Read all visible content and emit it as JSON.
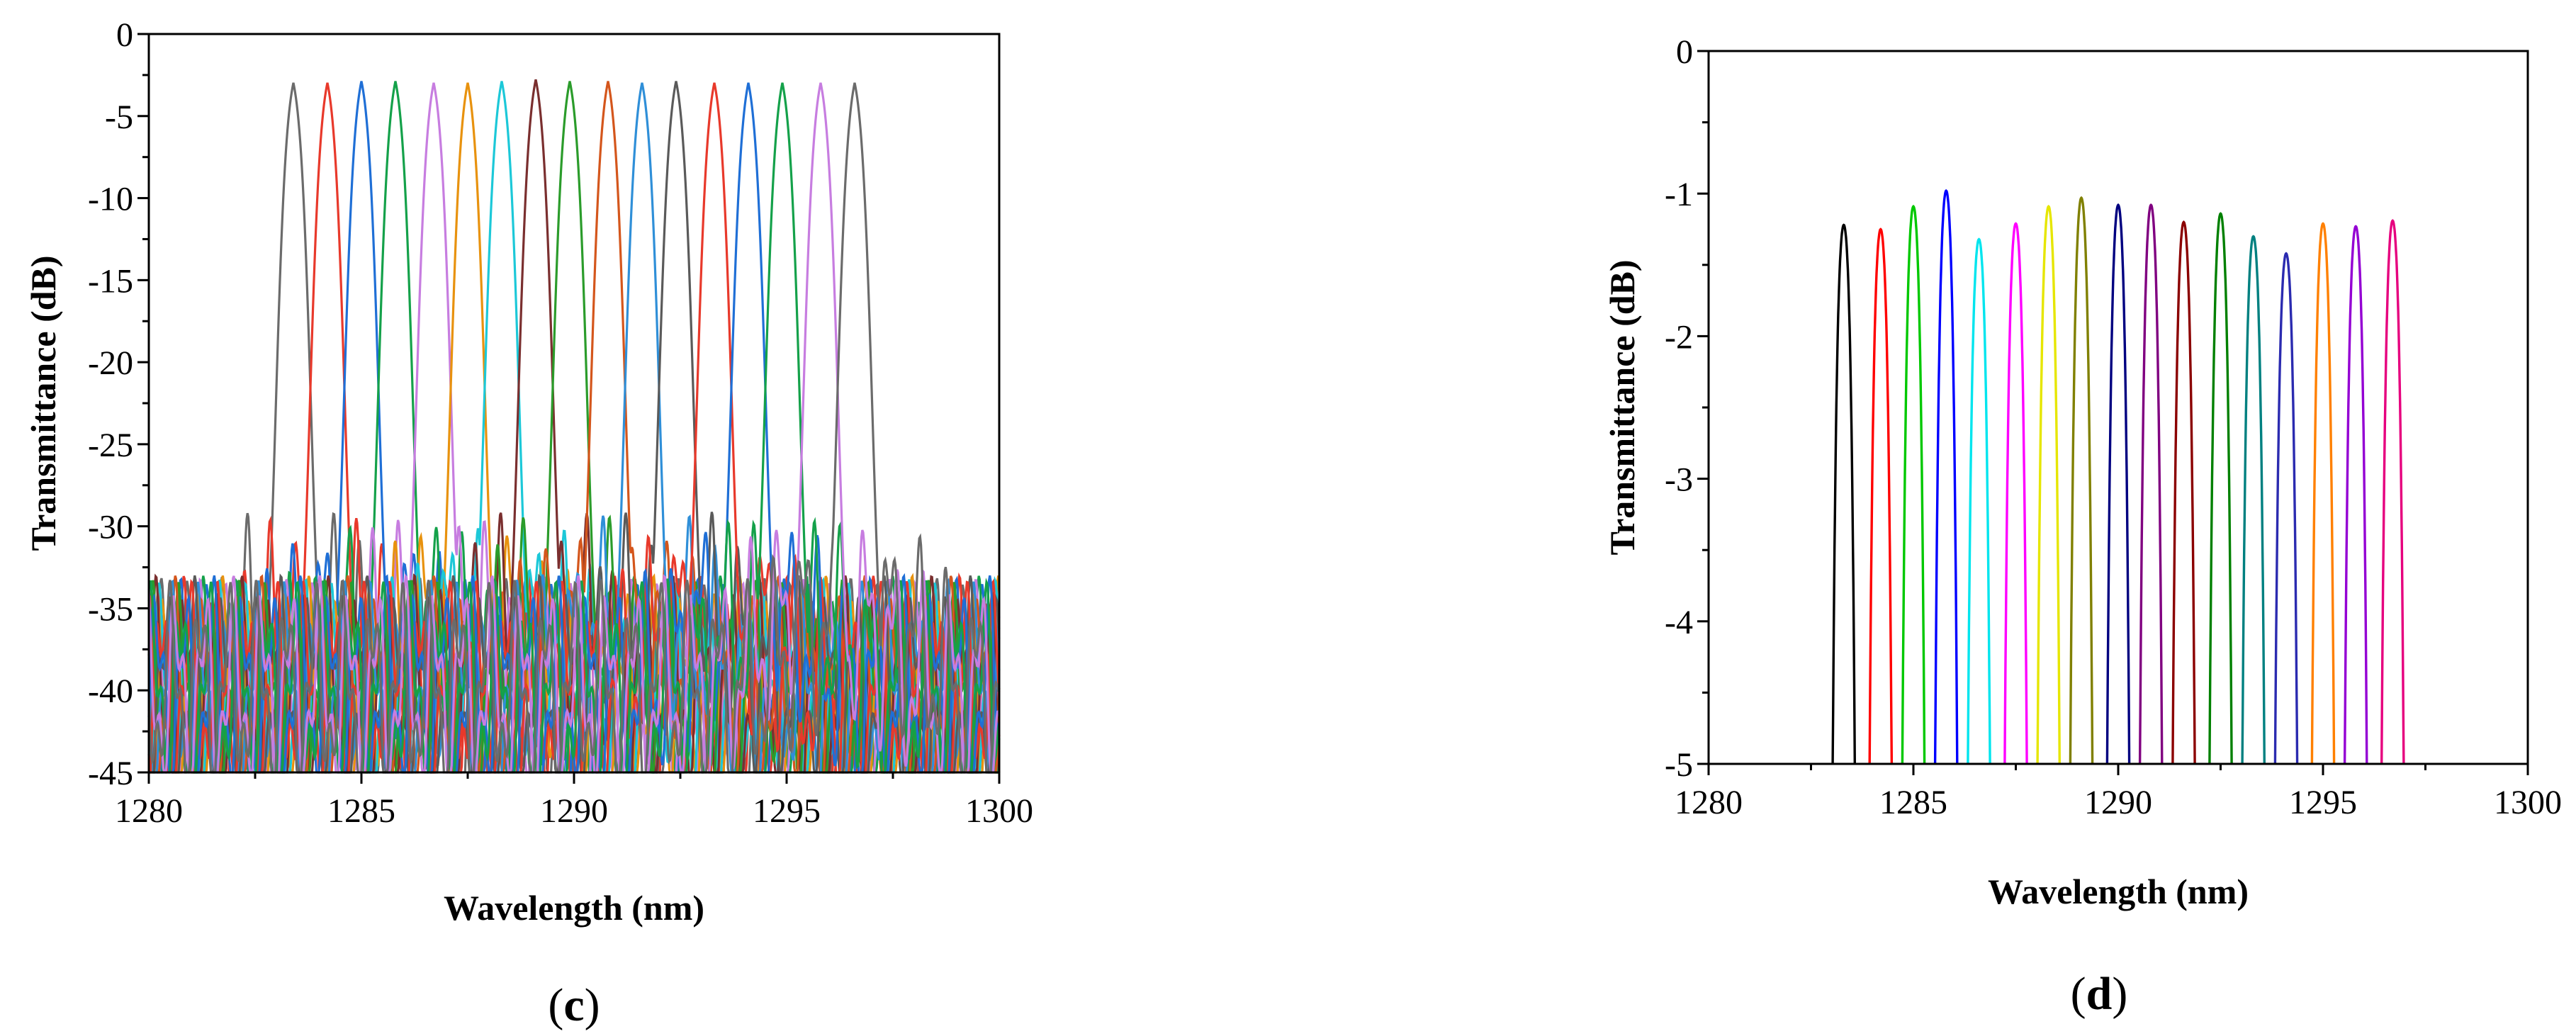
{
  "panels": {
    "c": {
      "label_open": "(",
      "label_letter": "c",
      "label_close": ")"
    },
    "d": {
      "label_open": "(",
      "label_letter": "d",
      "label_close": ")"
    }
  },
  "palette": {
    "c": [
      "#6b6b6b",
      "#e8392b",
      "#1f6fd6",
      "#14a14a",
      "#c77de0",
      "#e8920e",
      "#1cc8d8",
      "#7a2f2f",
      "#2b9c2b",
      "#d4561c",
      "#2f8fd8",
      "#5a5a5a",
      "#e8392b",
      "#1f6fd6",
      "#14a14a",
      "#c77de0"
    ],
    "d": [
      "#000000",
      "#ff0000",
      "#00c800",
      "#0000ff",
      "#00e5ee",
      "#ff00ff",
      "#e6e600",
      "#808000",
      "#000080",
      "#800080",
      "#8b0000",
      "#008000",
      "#008080",
      "#2b2bb0",
      "#ff8000",
      "#9400d3",
      "#e6007e"
    ]
  },
  "chart_data": [
    {
      "id": "c",
      "type": "line",
      "title": "",
      "xlabel": "Wavelength (nm)",
      "ylabel": "Transmittance (dB)",
      "xlim": [
        1280,
        1300
      ],
      "ylim": [
        -45,
        0
      ],
      "xticks": [
        1280,
        1285,
        1290,
        1295,
        1300
      ],
      "yticks": [
        0,
        -5,
        -10,
        -15,
        -20,
        -25,
        -30,
        -35,
        -40,
        -45
      ],
      "grid": false,
      "legend": "none",
      "passband_shape": "flat-top, ~1.2 nm 3 dB width, sidelobes -31 to -45 dB",
      "series": [
        {
          "center": 1283.4,
          "peak": -1.3
        },
        {
          "center": 1284.2,
          "peak": -1.3
        },
        {
          "center": 1285.0,
          "peak": -1.2
        },
        {
          "center": 1285.8,
          "peak": -1.2
        },
        {
          "center": 1286.7,
          "peak": -1.3
        },
        {
          "center": 1287.5,
          "peak": -1.3
        },
        {
          "center": 1288.3,
          "peak": -1.2
        },
        {
          "center": 1289.1,
          "peak": -1.1
        },
        {
          "center": 1289.9,
          "peak": -1.2
        },
        {
          "center": 1290.8,
          "peak": -1.2
        },
        {
          "center": 1291.6,
          "peak": -1.3
        },
        {
          "center": 1292.4,
          "peak": -1.2
        },
        {
          "center": 1293.3,
          "peak": -1.3
        },
        {
          "center": 1294.1,
          "peak": -1.3
        },
        {
          "center": 1294.9,
          "peak": -1.3
        },
        {
          "center": 1295.8,
          "peak": -1.3
        },
        {
          "center": 1296.6,
          "peak": -1.3
        }
      ]
    },
    {
      "id": "d",
      "type": "line",
      "title": "",
      "xlabel": "Wavelength (nm)",
      "ylabel": "Transmittance (dB)",
      "xlim": [
        1280,
        1300
      ],
      "ylim": [
        -5,
        0
      ],
      "xticks": [
        1280,
        1285,
        1290,
        1295,
        1300
      ],
      "yticks": [
        0,
        -1,
        -2,
        -3,
        -4,
        -5
      ],
      "grid": false,
      "legend": "none",
      "passband_shape": "narrow peak, ~0.5 nm wide at -5 dB",
      "series": [
        {
          "center": 1283.3,
          "peak": -1.22
        },
        {
          "center": 1284.2,
          "peak": -1.25
        },
        {
          "center": 1285.0,
          "peak": -1.09
        },
        {
          "center": 1285.8,
          "peak": -0.98
        },
        {
          "center": 1286.6,
          "peak": -1.32
        },
        {
          "center": 1287.5,
          "peak": -1.21
        },
        {
          "center": 1288.3,
          "peak": -1.09
        },
        {
          "center": 1289.1,
          "peak": -1.03
        },
        {
          "center": 1290.0,
          "peak": -1.08
        },
        {
          "center": 1290.8,
          "peak": -1.08
        },
        {
          "center": 1291.6,
          "peak": -1.2
        },
        {
          "center": 1292.5,
          "peak": -1.14
        },
        {
          "center": 1293.3,
          "peak": -1.3
        },
        {
          "center": 1294.1,
          "peak": -1.42
        },
        {
          "center": 1295.0,
          "peak": -1.21
        },
        {
          "center": 1295.8,
          "peak": -1.23
        },
        {
          "center": 1296.7,
          "peak": -1.19
        }
      ]
    }
  ]
}
